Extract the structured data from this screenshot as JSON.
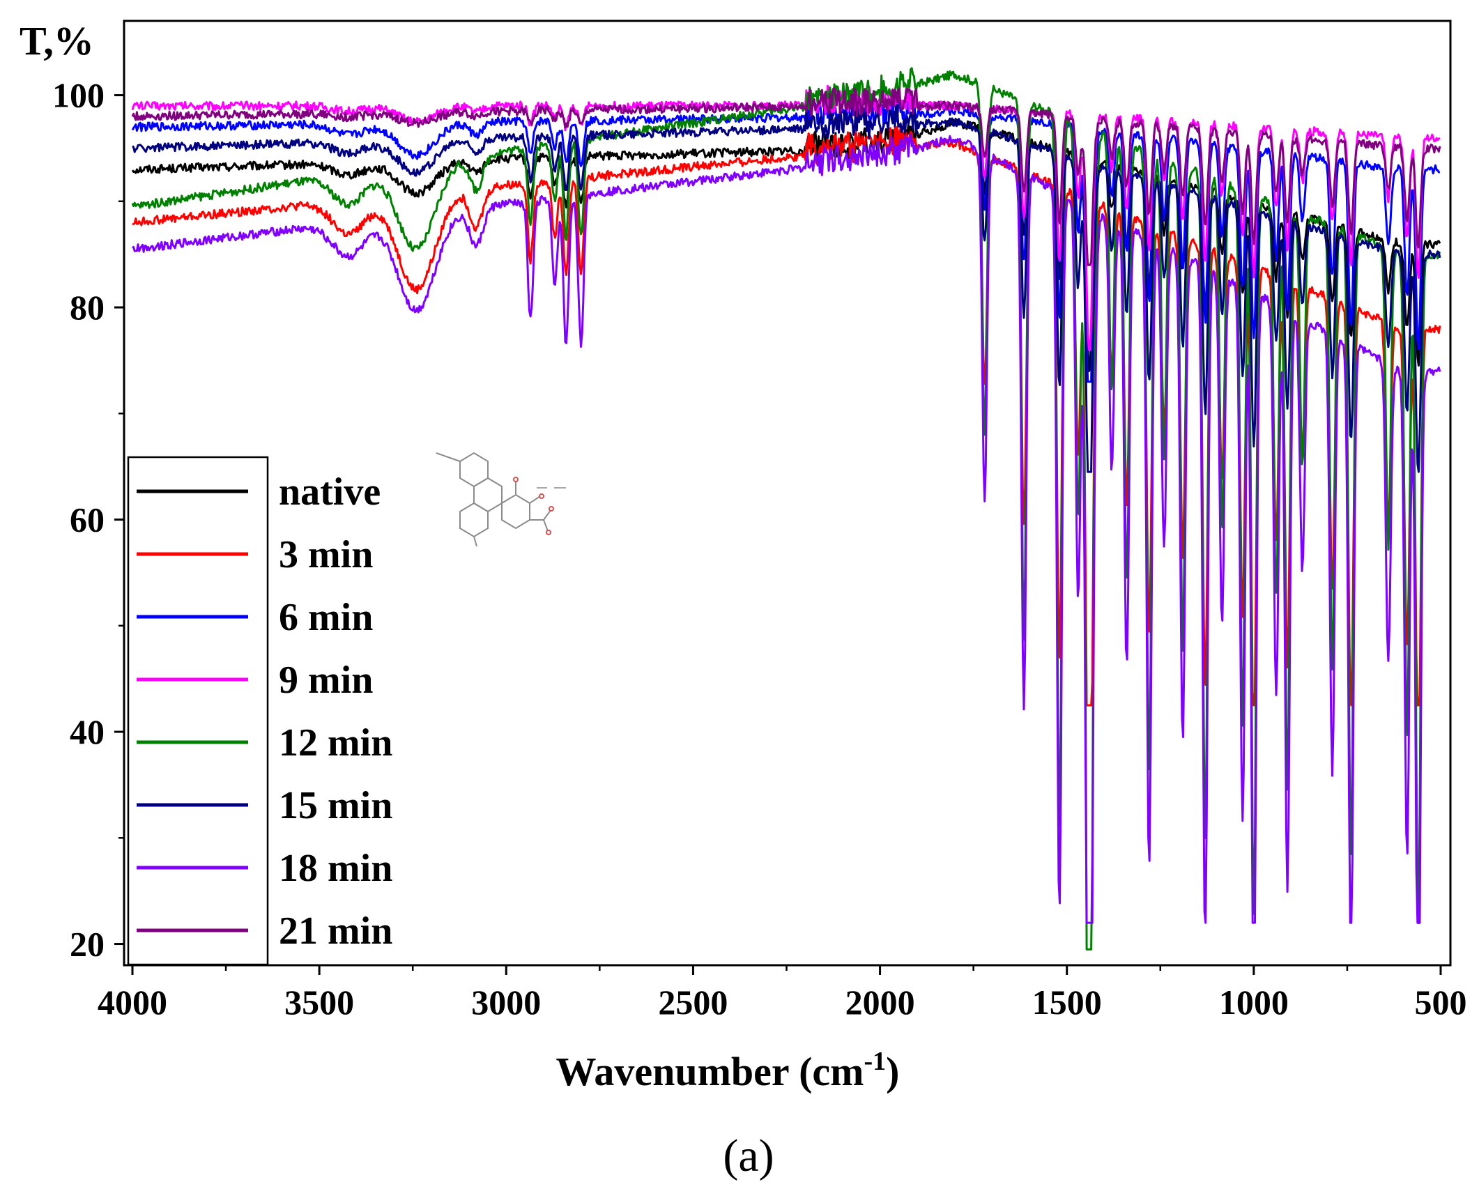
{
  "chart_data": {
    "type": "line",
    "title": "",
    "ylabel": "T,%",
    "xlabel_main": "Wavenumber (cm",
    "xlabel_sup": "-1",
    "xlabel_close": ")",
    "caption": "(a)",
    "xlim": [
      4000,
      500
    ],
    "x_reversed": true,
    "ylim": [
      18,
      107
    ],
    "x_ticks": [
      4000,
      3500,
      3000,
      2500,
      2000,
      1500,
      1000,
      500
    ],
    "y_ticks": [
      20,
      40,
      60,
      80,
      100
    ],
    "legend_position": "bottom-left",
    "inset": "molecular structure sketch with hydrate label",
    "colors": {
      "native": "#000000",
      "3 min": "#ff0000",
      "6 min": "#0000ff",
      "9 min": "#ff00ff",
      "12 min": "#008000",
      "15 min": "#000080",
      "18 min": "#8000ff",
      "21 min": "#800080"
    },
    "peak_positions_cm-1": [
      3240,
      3080,
      2930,
      2870,
      2840,
      2800,
      1720,
      1615,
      1520,
      1470,
      1440,
      1380,
      1340,
      1280,
      1240,
      1190,
      1130,
      1085,
      1030,
      1000,
      940,
      910,
      870,
      790,
      740,
      640,
      590,
      560
    ],
    "series": [
      {
        "name": "native",
        "baseline_4000": 93.0,
        "baseline_2000": 95.0,
        "baseline_1800": 97.5,
        "baseline_600": 86.0,
        "depth_3240": 3.0,
        "depth_2850": 4.5,
        "depth_fingerprint_1440": 12.0,
        "min_value": 73.0
      },
      {
        "name": "3 min",
        "baseline_4000": 88.0,
        "baseline_2000": 95.0,
        "baseline_1800": 95.5,
        "baseline_600": 78.0,
        "depth_3240": 9.0,
        "depth_2850": 9.0,
        "depth_fingerprint_1440": 45.0,
        "min_value": 42.5
      },
      {
        "name": "6 min",
        "baseline_4000": 97.0,
        "baseline_2000": 98.0,
        "baseline_1800": 98.5,
        "baseline_600": 93.0,
        "depth_3240": 3.0,
        "depth_2850": 4.0,
        "depth_fingerprint_1440": 18.0,
        "min_value": 73.0
      },
      {
        "name": "9 min",
        "baseline_4000": 99.0,
        "baseline_2000": 99.0,
        "baseline_1800": 99.0,
        "baseline_600": 96.0,
        "depth_3240": 1.5,
        "depth_2850": 2.0,
        "depth_fingerprint_1440": 14.0,
        "min_value": 76.0
      },
      {
        "name": "12 min",
        "baseline_4000": 89.5,
        "baseline_2000": 100.0,
        "baseline_1800": 102.0,
        "baseline_600": 85.0,
        "depth_3240": 8.0,
        "depth_2850": 9.0,
        "depth_fingerprint_1440": 68.0,
        "min_value": 19.5
      },
      {
        "name": "15 min",
        "baseline_4000": 95.0,
        "baseline_2000": 97.0,
        "baseline_1800": 97.5,
        "baseline_600": 85.0,
        "depth_3240": 3.0,
        "depth_2850": 5.0,
        "depth_fingerprint_1440": 22.0,
        "min_value": 64.5
      },
      {
        "name": "18 min",
        "baseline_4000": 85.5,
        "baseline_2000": 94.0,
        "baseline_1800": 96.0,
        "baseline_600": 74.0,
        "depth_3240": 9.0,
        "depth_2850": 14.0,
        "depth_fingerprint_1440": 68.0,
        "min_value": 22.0
      },
      {
        "name": "21 min",
        "baseline_4000": 98.0,
        "baseline_2000": 99.0,
        "baseline_1800": 99.0,
        "baseline_600": 95.0,
        "depth_3240": 1.0,
        "depth_2850": 1.5,
        "depth_fingerprint_1440": 10.0,
        "min_value": 84.0
      }
    ]
  }
}
